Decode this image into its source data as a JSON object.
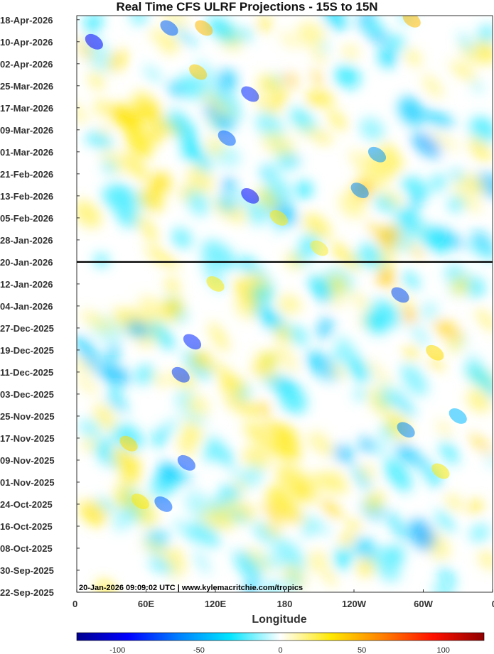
{
  "chart_data": {
    "type": "heatmap",
    "title": "Real Time CFS ULRF Projections - 15S to 15N",
    "xlabel": "Longitude",
    "ylabel": "",
    "x_ticks": [
      "0",
      "60E",
      "120E",
      "180",
      "120W",
      "60W",
      "0"
    ],
    "y_ticks": [
      "18-Apr-2026",
      "10-Apr-2026",
      "02-Apr-2026",
      "25-Mar-2026",
      "17-Mar-2026",
      "09-Mar-2026",
      "01-Mar-2026",
      "21-Feb-2026",
      "13-Feb-2026",
      "05-Feb-2026",
      "28-Jan-2026",
      "20-Jan-2026",
      "12-Jan-2026",
      "04-Jan-2026",
      "27-Dec-2025",
      "19-Dec-2025",
      "11-Dec-2025",
      "03-Dec-2025",
      "25-Nov-2025",
      "17-Nov-2025",
      "09-Nov-2025",
      "01-Nov-2025",
      "24-Oct-2025",
      "16-Oct-2025",
      "08-Oct-2025",
      "30-Sep-2025",
      "22-Sep-2025"
    ],
    "reference_line_date": "20-Jan-2026",
    "annotation": "20-Jan-2026 09:09:02 UTC | www.kylemacritchie.com/tropics",
    "colorbar": {
      "ticks": [
        "-100",
        "-50",
        "0",
        "50",
        "100"
      ],
      "range": [
        -125,
        125
      ]
    },
    "features": [
      {
        "lon": 75,
        "date": "2025-10-24",
        "value": -70
      },
      {
        "lon": 95,
        "date": "2025-11-08",
        "value": -75
      },
      {
        "lon": 90,
        "date": "2025-12-10",
        "value": -80
      },
      {
        "lon": 100,
        "date": "2025-12-22",
        "value": -85
      },
      {
        "lon": 150,
        "date": "2026-02-13",
        "value": -95
      },
      {
        "lon": 150,
        "date": "2026-03-22",
        "value": -85
      },
      {
        "lon": 130,
        "date": "2026-03-06",
        "value": -70
      },
      {
        "lon": 15,
        "date": "2026-04-10",
        "value": -95
      },
      {
        "lon": 80,
        "date": "2026-04-15",
        "value": -70
      },
      {
        "lon": 280,
        "date": "2026-01-08",
        "value": -75
      },
      {
        "lon": 285,
        "date": "2025-11-20",
        "value": -60
      },
      {
        "lon": 260,
        "date": "2026-02-28",
        "value": -55
      },
      {
        "lon": 245,
        "date": "2026-02-15",
        "value": -60
      },
      {
        "lon": 330,
        "date": "2025-11-25",
        "value": -45
      },
      {
        "lon": 105,
        "date": "2026-03-30",
        "value": 40
      },
      {
        "lon": 110,
        "date": "2026-04-15",
        "value": 45
      },
      {
        "lon": 55,
        "date": "2025-10-25",
        "value": 30
      },
      {
        "lon": 45,
        "date": "2025-11-15",
        "value": 35
      },
      {
        "lon": 290,
        "date": "2026-04-18",
        "value": 45
      },
      {
        "lon": 310,
        "date": "2025-12-18",
        "value": 35
      },
      {
        "lon": 315,
        "date": "2025-11-05",
        "value": 30
      },
      {
        "lon": 175,
        "date": "2026-02-05",
        "value": 30
      },
      {
        "lon": 210,
        "date": "2026-01-25",
        "value": 25
      },
      {
        "lon": 120,
        "date": "2026-01-12",
        "value": 30
      }
    ]
  }
}
